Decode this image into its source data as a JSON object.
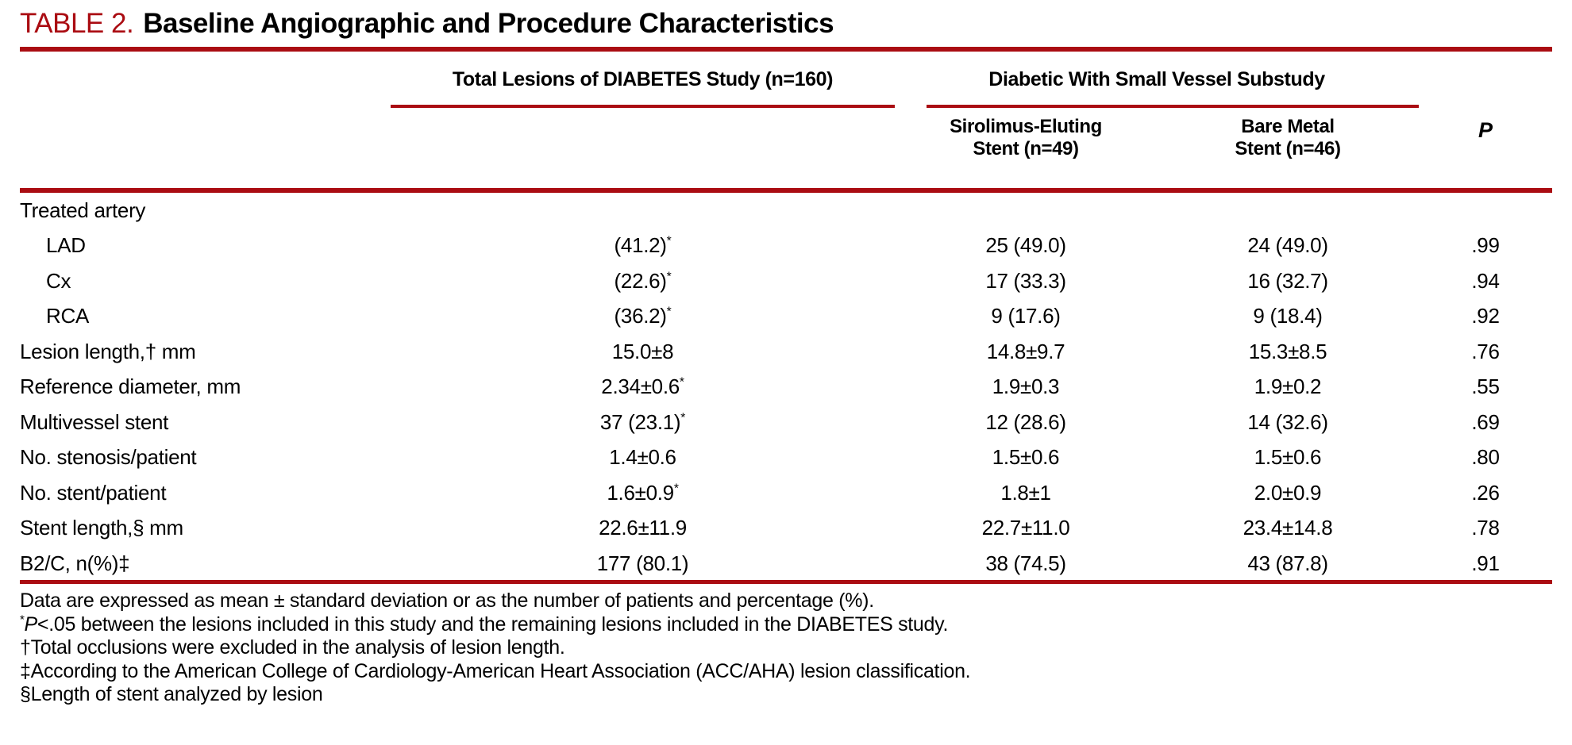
{
  "colors": {
    "rule_red": "#AA0C12",
    "title_red": "#AA0C12",
    "text": "#000000",
    "background": "#FFFFFF"
  },
  "title": {
    "label": "TABLE 2.",
    "text": "Baseline Angiographic and Procedure Characteristics"
  },
  "table": {
    "group_headers": [
      {
        "label": "Total Lesions of DIABETES Study (n=160)"
      },
      {
        "label": "Diabetic With Small Vessel Substudy"
      }
    ],
    "sub_headers": [
      {
        "line1": "Sirolimus-Eluting",
        "line2": "Stent (n=49)"
      },
      {
        "line1": "Bare Metal",
        "line2": "Stent (n=46)"
      }
    ],
    "p_header": "P",
    "rows": [
      {
        "label": "Treated artery",
        "indent": false,
        "cells": [
          null,
          null,
          null,
          null
        ]
      },
      {
        "label": "LAD",
        "indent": true,
        "cells": [
          {
            "t": "(41.2)",
            "sup": "*"
          },
          {
            "t": "25 (49.0)"
          },
          {
            "t": "24 (49.0)"
          },
          {
            "t": ".99"
          }
        ]
      },
      {
        "label": "Cx",
        "indent": true,
        "cells": [
          {
            "t": "(22.6)",
            "sup": "*"
          },
          {
            "t": "17 (33.3)"
          },
          {
            "t": "16 (32.7)"
          },
          {
            "t": ".94"
          }
        ]
      },
      {
        "label": "RCA",
        "indent": true,
        "cells": [
          {
            "t": "(36.2)",
            "sup": "*"
          },
          {
            "t": "9 (17.6)"
          },
          {
            "t": "9 (18.4)"
          },
          {
            "t": ".92"
          }
        ]
      },
      {
        "label": "Lesion length,† mm",
        "indent": false,
        "cells": [
          {
            "t": "15.0±8"
          },
          {
            "t": "14.8±9.7"
          },
          {
            "t": "15.3±8.5"
          },
          {
            "t": ".76"
          }
        ]
      },
      {
        "label": "Reference diameter, mm",
        "indent": false,
        "cells": [
          {
            "t": "2.34±0.6",
            "sup": "*"
          },
          {
            "t": "1.9±0.3"
          },
          {
            "t": "1.9±0.2"
          },
          {
            "t": ".55"
          }
        ]
      },
      {
        "label": "Multivessel stent",
        "indent": false,
        "cells": [
          {
            "t": "37 (23.1)",
            "sup": "*"
          },
          {
            "t": "12 (28.6)"
          },
          {
            "t": "14 (32.6)"
          },
          {
            "t": ".69"
          }
        ]
      },
      {
        "label": "No. stenosis/patient",
        "indent": false,
        "cells": [
          {
            "t": "1.4±0.6"
          },
          {
            "t": "1.5±0.6"
          },
          {
            "t": "1.5±0.6"
          },
          {
            "t": ".80"
          }
        ]
      },
      {
        "label": "No. stent/patient",
        "indent": false,
        "cells": [
          {
            "t": "1.6±0.9",
            "sup": "*"
          },
          {
            "t": "1.8±1"
          },
          {
            "t": "2.0±0.9"
          },
          {
            "t": ".26"
          }
        ]
      },
      {
        "label": "Stent length,§ mm",
        "indent": false,
        "cells": [
          {
            "t": "22.6±11.9"
          },
          {
            "t": "22.7±11.0"
          },
          {
            "t": "23.4±14.8"
          },
          {
            "t": ".78"
          }
        ]
      },
      {
        "label": "B2/C, n(%)‡",
        "indent": false,
        "cells": [
          {
            "t": "177 (80.1)"
          },
          {
            "t": "38 (74.5)"
          },
          {
            "t": "43 (87.8)"
          },
          {
            "t": ".91"
          }
        ]
      }
    ],
    "footnotes": [
      [
        {
          "t": "Data are expressed as mean ± standard deviation or as the number of patients and percentage (%)."
        }
      ],
      [
        {
          "t": "*",
          "style": "sup"
        },
        {
          "t": "P",
          "style": "i"
        },
        {
          "t": "<.05 between the lesions included in this study and the remaining lesions included in the DIABETES study."
        }
      ],
      [
        {
          "t": "†Total occlusions were excluded in the analysis of lesion length."
        }
      ],
      [
        {
          "t": "‡According to the American College of Cardiology-American Heart Association (ACC/AHA) lesion classification."
        }
      ],
      [
        {
          "t": "§Length of stent analyzed by lesion"
        }
      ]
    ]
  }
}
